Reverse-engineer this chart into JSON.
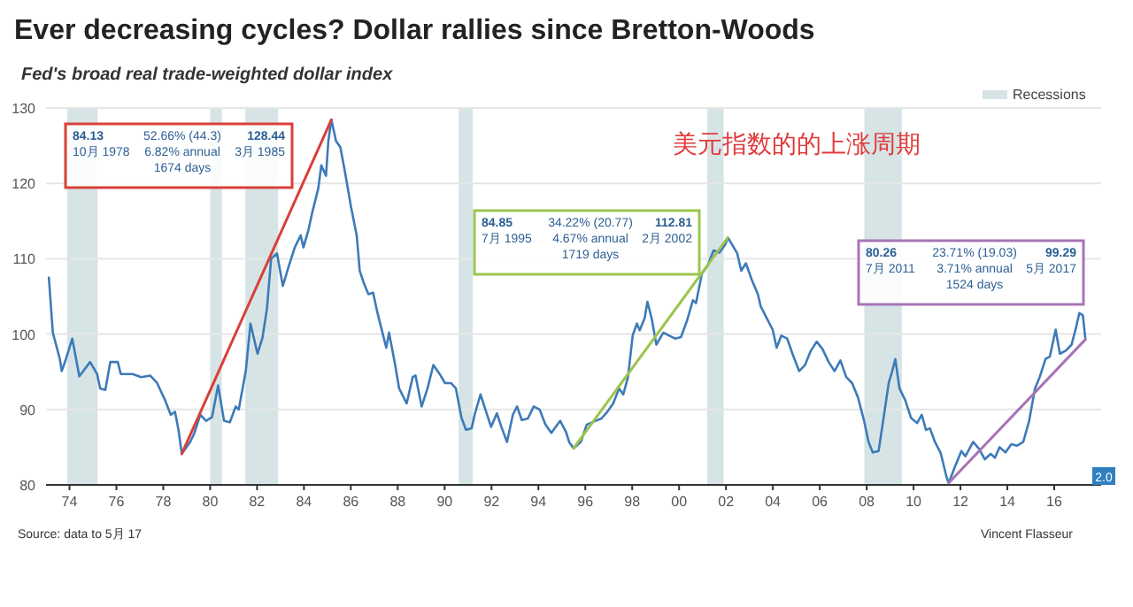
{
  "chart_data": {
    "type": "line",
    "title": "Ever decreasing cycles? Dollar rallies since Bretton-Woods",
    "subtitle": "Fed's broad real trade-weighted dollar index",
    "xlim": [
      1973,
      2018
    ],
    "ylim": [
      80,
      130
    ],
    "yticks": [
      80,
      90,
      100,
      110,
      120,
      130
    ],
    "xticks": [
      {
        "value": 1974,
        "label": "74"
      },
      {
        "value": 1976,
        "label": "76"
      },
      {
        "value": 1978,
        "label": "78"
      },
      {
        "value": 1980,
        "label": "80"
      },
      {
        "value": 1982,
        "label": "82"
      },
      {
        "value": 1984,
        "label": "84"
      },
      {
        "value": 1986,
        "label": "86"
      },
      {
        "value": 1988,
        "label": "88"
      },
      {
        "value": 1990,
        "label": "90"
      },
      {
        "value": 1992,
        "label": "92"
      },
      {
        "value": 1994,
        "label": "94"
      },
      {
        "value": 1996,
        "label": "96"
      },
      {
        "value": 1998,
        "label": "98"
      },
      {
        "value": 2000,
        "label": "00"
      },
      {
        "value": 2002,
        "label": "02"
      },
      {
        "value": 2004,
        "label": "04"
      },
      {
        "value": 2006,
        "label": "06"
      },
      {
        "value": 2008,
        "label": "08"
      },
      {
        "value": 2010,
        "label": "10"
      },
      {
        "value": 2012,
        "label": "12"
      },
      {
        "value": 2014,
        "label": "14"
      },
      {
        "value": 2016,
        "label": "16"
      }
    ],
    "grid": "y",
    "legend": "top right",
    "marker": "none",
    "line_style": "solid",
    "series": [
      {
        "color": "#3d7ab8",
        "x": [
          1973.12,
          1973.29,
          1973.59,
          1973.67,
          1973.85,
          1974.12,
          1974.42,
          1974.88,
          1975.18,
          1975.31,
          1975.53,
          1975.74,
          1976.06,
          1976.19,
          1976.69,
          1977.06,
          1977.44,
          1977.74,
          1978.08,
          1978.32,
          1978.5,
          1978.65,
          1978.79,
          1979.15,
          1979.33,
          1979.58,
          1979.83,
          1980.08,
          1980.34,
          1980.59,
          1980.84,
          1981.09,
          1981.22,
          1981.52,
          1981.72,
          1982.02,
          1982.23,
          1982.42,
          1982.6,
          1982.85,
          1983.1,
          1983.36,
          1983.61,
          1983.86,
          1983.98,
          1984.19,
          1984.36,
          1984.61,
          1984.74,
          1984.94,
          1985.04,
          1985.17,
          1985.37,
          1985.55,
          1985.74,
          1986.0,
          1986.25,
          1986.38,
          1986.55,
          1986.75,
          1986.95,
          1987.13,
          1987.25,
          1987.51,
          1987.63,
          1987.89,
          1988.06,
          1988.38,
          1988.64,
          1988.76,
          1989.02,
          1989.27,
          1989.52,
          1989.77,
          1990.02,
          1990.27,
          1990.48,
          1990.72,
          1990.91,
          1991.15,
          1991.28,
          1991.53,
          1991.77,
          1991.98,
          1992.23,
          1992.42,
          1992.66,
          1992.91,
          1993.09,
          1993.29,
          1993.55,
          1993.8,
          1994.05,
          1994.3,
          1994.55,
          1994.93,
          1995.18,
          1995.31,
          1995.5,
          1995.81,
          1996.06,
          1996.44,
          1996.69,
          1996.94,
          1997.19,
          1997.44,
          1997.62,
          1997.82,
          1998.02,
          1998.2,
          1998.32,
          1998.53,
          1998.65,
          1998.83,
          1999.03,
          1999.33,
          1999.58,
          1999.83,
          2000.08,
          2000.34,
          2000.59,
          2000.72,
          2000.97,
          2001.22,
          2001.47,
          2001.72,
          2001.97,
          2002.08,
          2002.48,
          2002.65,
          2002.85,
          2003.1,
          2003.36,
          2003.48,
          2003.74,
          2003.99,
          2004.16,
          2004.36,
          2004.61,
          2004.87,
          2005.12,
          2005.37,
          2005.62,
          2005.87,
          2006.12,
          2006.38,
          2006.63,
          2006.88,
          2007.13,
          2007.38,
          2007.63,
          2007.89,
          2008.08,
          2008.26,
          2008.51,
          2008.76,
          2008.94,
          2009.09,
          2009.22,
          2009.4,
          2009.65,
          2009.89,
          2010.15,
          2010.35,
          2010.53,
          2010.7,
          2010.91,
          2011.16,
          2011.41,
          2011.5,
          2011.79,
          2012.04,
          2012.21,
          2012.54,
          2012.79,
          2013.04,
          2013.29,
          2013.47,
          2013.67,
          2013.92,
          2014.17,
          2014.42,
          2014.68,
          2014.93,
          2015.18,
          2015.38,
          2015.63,
          2015.81,
          2016.06,
          2016.24,
          2016.49,
          2016.74,
          2016.94,
          2017.07,
          2017.22,
          2017.33
        ],
        "values": [
          107.5,
          100.2,
          96.7,
          95.1,
          96.7,
          99.4,
          94.4,
          96.3,
          94.7,
          92.8,
          92.6,
          96.3,
          96.3,
          94.7,
          94.7,
          94.3,
          94.5,
          93.5,
          91.2,
          89.3,
          89.7,
          87.3,
          84.13,
          85.7,
          86.9,
          89.3,
          88.5,
          89,
          93.2,
          88.5,
          88.3,
          90.4,
          90,
          95.1,
          101.4,
          97.4,
          99.5,
          103.3,
          110,
          110.7,
          106.4,
          109.1,
          111.5,
          113.1,
          111.5,
          113.8,
          116.2,
          119.3,
          122.4,
          121,
          125.6,
          128.44,
          125.6,
          124.8,
          121.7,
          117,
          113.1,
          108.4,
          106.8,
          105.3,
          105.5,
          102.9,
          101.4,
          98.2,
          100.2,
          95.9,
          92.8,
          90.8,
          94.3,
          94.5,
          90.4,
          92.8,
          95.9,
          94.8,
          93.5,
          93.5,
          92.8,
          88.9,
          87.3,
          87.5,
          89.3,
          92,
          89.7,
          87.7,
          89.5,
          87.7,
          85.7,
          89.3,
          90.4,
          88.6,
          88.8,
          90.4,
          90,
          88,
          86.9,
          88.5,
          87,
          85.7,
          84.85,
          85.7,
          88,
          88.5,
          88.8,
          89.7,
          90.8,
          92.8,
          92,
          94.3,
          99.8,
          101.4,
          100.5,
          102.1,
          104.3,
          102.1,
          98.6,
          100.2,
          99.8,
          99.4,
          99.6,
          101.8,
          104.5,
          104.1,
          108,
          109.1,
          111.1,
          110.8,
          111.9,
          112.81,
          110.7,
          108.4,
          109.4,
          107.2,
          105.3,
          103.7,
          102.1,
          100.6,
          98.2,
          99.8,
          99.4,
          97.1,
          95.1,
          95.9,
          97.8,
          99,
          98,
          96.3,
          95.1,
          96.5,
          94.3,
          93.5,
          91.6,
          88.5,
          85.7,
          84.3,
          84.5,
          89.7,
          93.5,
          95.1,
          96.7,
          92.8,
          91.2,
          88.9,
          88.2,
          89.3,
          87.3,
          87.5,
          85.7,
          84.2,
          81,
          80.26,
          82.6,
          84.5,
          83.8,
          85.7,
          84.8,
          83.4,
          84.1,
          83.6,
          85,
          84.3,
          85.4,
          85.2,
          85.7,
          88.5,
          92.8,
          94.3,
          96.7,
          97,
          100.6,
          97.4,
          97.8,
          98.6,
          101,
          102.8,
          102.5,
          99.29
        ]
      },
      {
        "type": "line",
        "color": "#d9403a",
        "x": [
          1978.79,
          1985.17
        ],
        "values": [
          84.13,
          128.44
        ]
      },
      {
        "type": "line",
        "color": "#9cc54e",
        "x": [
          1995.5,
          2002.08
        ],
        "values": [
          84.85,
          112.81
        ]
      },
      {
        "type": "line",
        "color": "#a774b5",
        "x": [
          2011.5,
          2017.33
        ],
        "values": [
          80.26,
          99.29
        ]
      }
    ],
    "bands": [
      {
        "axis": "x",
        "from": 1973.9,
        "to": 1975.2,
        "label": "Recessions",
        "color": "#d6e4e6"
      },
      {
        "axis": "x",
        "from": 1980.0,
        "to": 1980.5,
        "color": "#d6e4e6"
      },
      {
        "axis": "x",
        "from": 1981.5,
        "to": 1982.9,
        "color": "#d6e4e6"
      },
      {
        "axis": "x",
        "from": 1990.6,
        "to": 1991.2,
        "color": "#d6e4e6"
      },
      {
        "axis": "x",
        "from": 2001.2,
        "to": 2001.9,
        "color": "#d6e4e6"
      },
      {
        "axis": "x",
        "from": 2007.9,
        "to": 2009.5,
        "color": "#d6e4e6"
      }
    ],
    "annotations": [
      "美元指数的的上涨周期",
      "84.13",
      "10月 1978",
      "52.66% (44.3)",
      "6.82% annual",
      "1674 days",
      "128.44",
      "3月 1985",
      "84.85",
      "7月 1995",
      "34.22% (20.77)",
      "4.67% annual",
      "1719 days",
      "112.81",
      "2月 2002",
      "80.26",
      "7月 2011",
      "23.71% (19.03)",
      "3.71% annual",
      "1524 days",
      "99.29",
      "5月 2017",
      "2.0",
      "Source: data to 5月 17",
      "Vincent Flasseur"
    ]
  }
}
